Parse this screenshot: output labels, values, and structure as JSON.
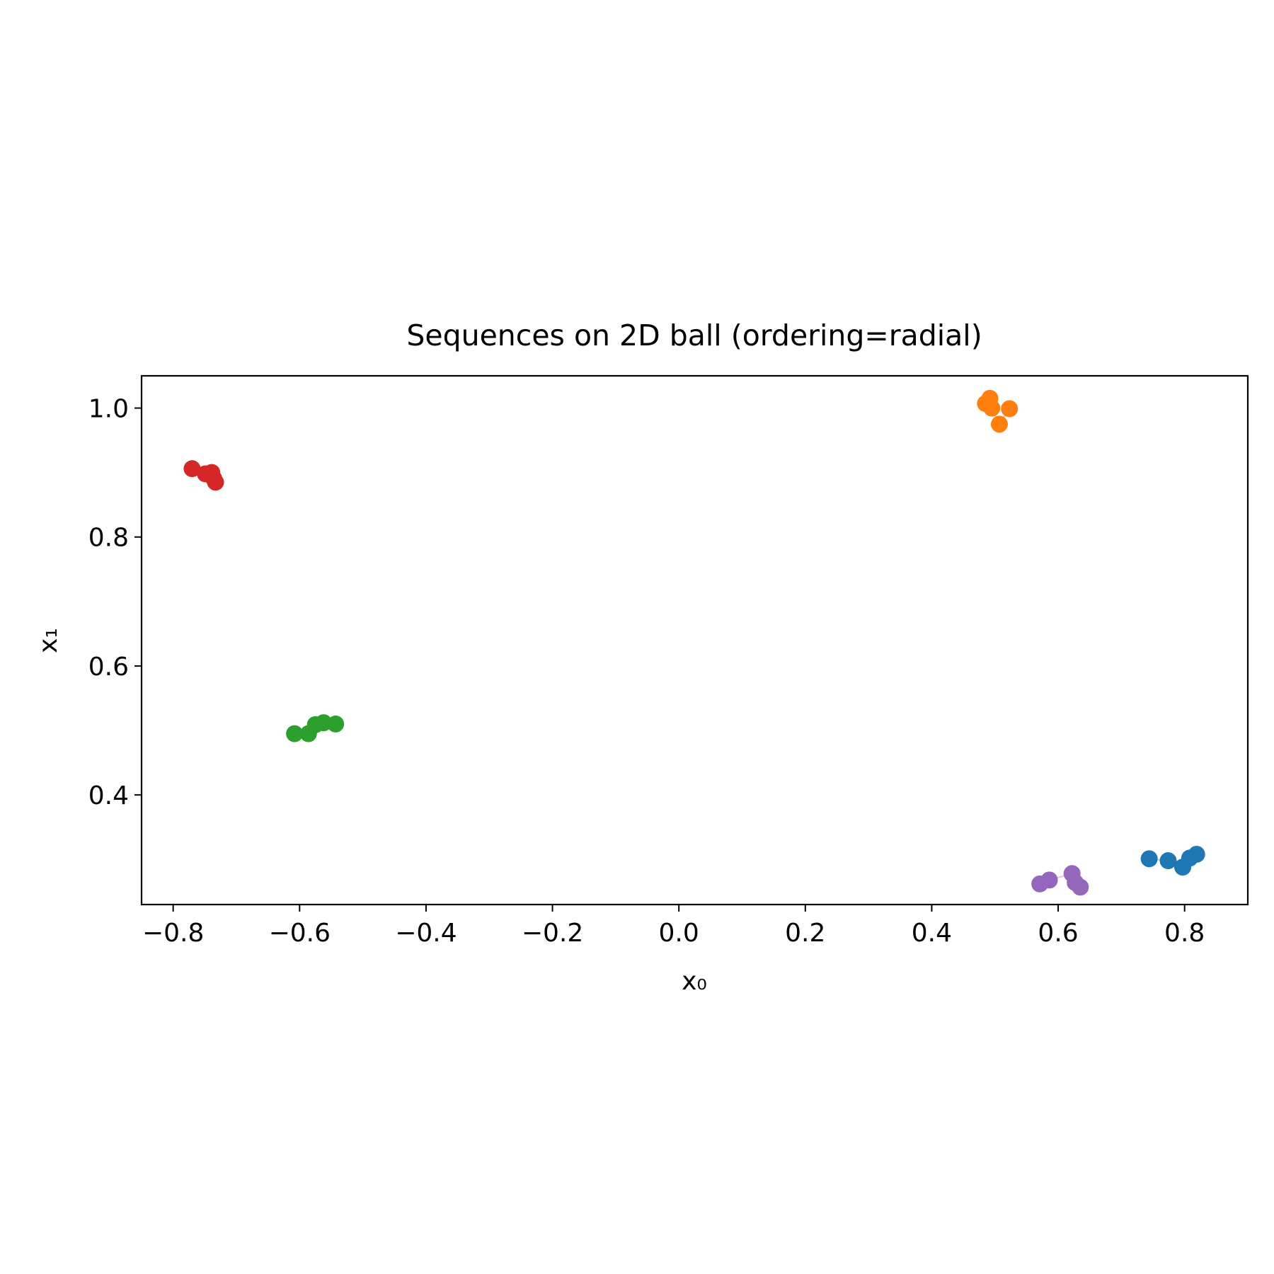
{
  "chart_data": {
    "type": "scatter",
    "title": "Sequences on 2D ball (ordering=radial)",
    "xlabel": "x₀",
    "ylabel": "x₁",
    "xlim": [
      -0.85,
      0.9
    ],
    "ylim": [
      0.23,
      1.05
    ],
    "xticks": [
      {
        "value": -0.8,
        "label": "−0.8"
      },
      {
        "value": -0.6,
        "label": "−0.6"
      },
      {
        "value": -0.4,
        "label": "−0.4"
      },
      {
        "value": -0.2,
        "label": "−0.2"
      },
      {
        "value": 0.0,
        "label": "0.0"
      },
      {
        "value": 0.2,
        "label": "0.2"
      },
      {
        "value": 0.4,
        "label": "0.4"
      },
      {
        "value": 0.6,
        "label": "0.6"
      },
      {
        "value": 0.8,
        "label": "0.8"
      }
    ],
    "yticks": [
      {
        "value": 0.4,
        "label": "0.4"
      },
      {
        "value": 0.6,
        "label": "0.6"
      },
      {
        "value": 0.8,
        "label": "0.8"
      },
      {
        "value": 1.0,
        "label": "1.0"
      }
    ],
    "grid": false,
    "series": [
      {
        "color": "#1f77b4",
        "points": [
          [
            0.744,
            0.301
          ],
          [
            0.774,
            0.298
          ],
          [
            0.797,
            0.288
          ],
          [
            0.808,
            0.302
          ],
          [
            0.819,
            0.308
          ]
        ]
      },
      {
        "color": "#ff7f0e",
        "points": [
          [
            0.485,
            1.007
          ],
          [
            0.492,
            1.015
          ],
          [
            0.495,
            1.0
          ],
          [
            0.507,
            0.975
          ],
          [
            0.523,
            0.999
          ]
        ]
      },
      {
        "color": "#2ca02c",
        "points": [
          [
            -0.608,
            0.495
          ],
          [
            -0.586,
            0.495
          ],
          [
            -0.575,
            0.509
          ],
          [
            -0.562,
            0.512
          ],
          [
            -0.543,
            0.51
          ]
        ]
      },
      {
        "color": "#d62728",
        "points": [
          [
            -0.77,
            0.906
          ],
          [
            -0.749,
            0.898
          ],
          [
            -0.739,
            0.9
          ],
          [
            -0.736,
            0.891
          ],
          [
            -0.733,
            0.885
          ]
        ]
      },
      {
        "color": "#9467bd",
        "points": [
          [
            0.571,
            0.262
          ],
          [
            0.586,
            0.268
          ],
          [
            0.622,
            0.278
          ],
          [
            0.627,
            0.264
          ],
          [
            0.635,
            0.257
          ]
        ]
      }
    ]
  }
}
